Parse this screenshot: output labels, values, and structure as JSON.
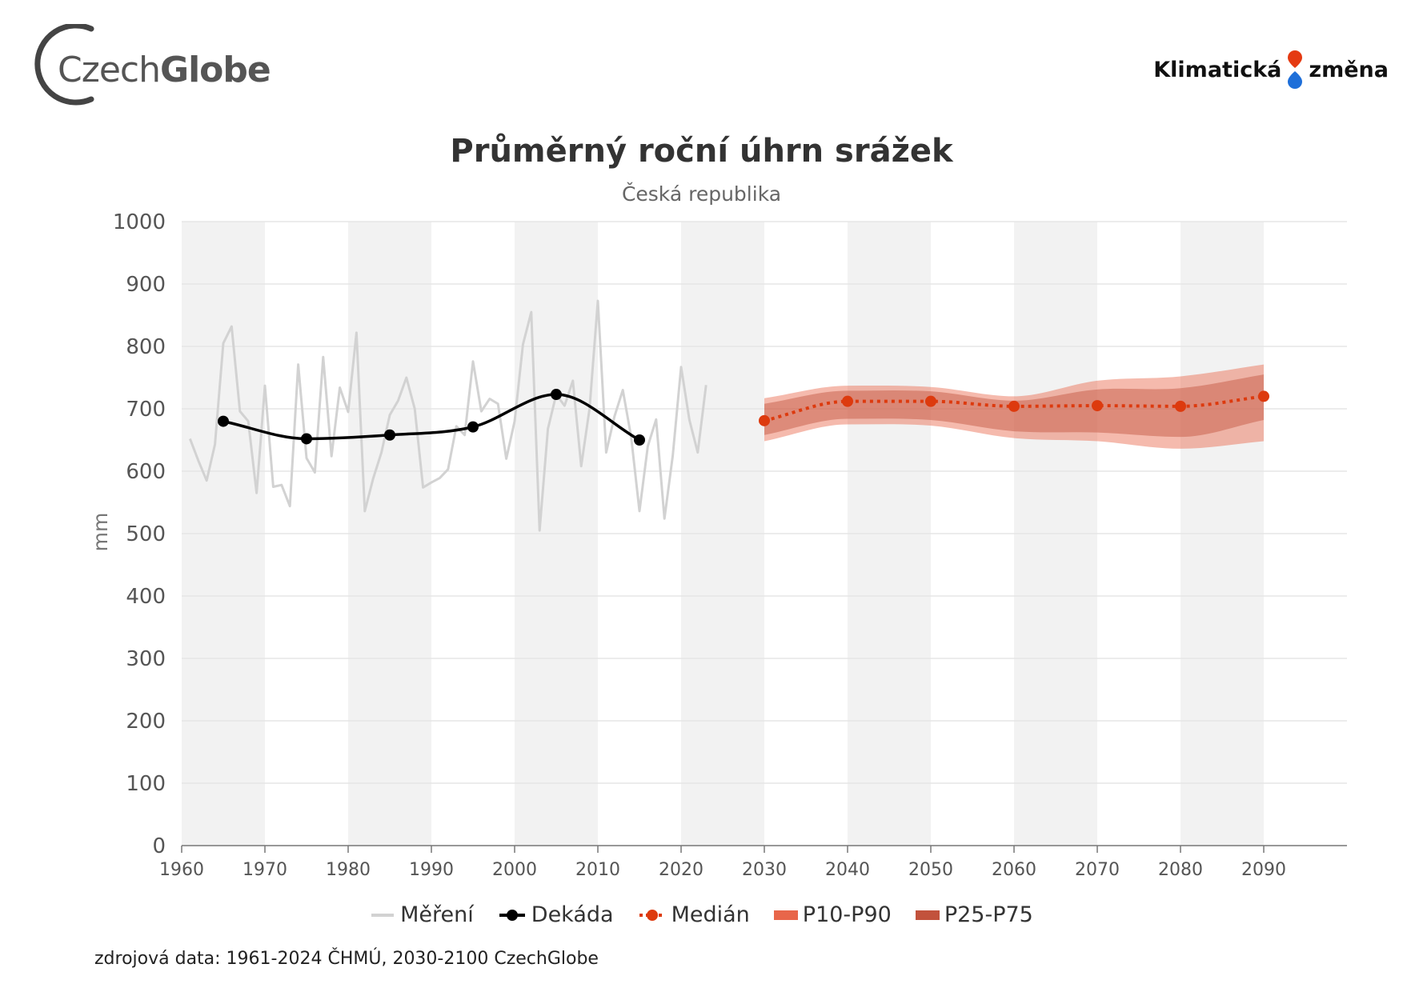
{
  "logos": {
    "left_part1": "Czech",
    "left_part2": "Globe",
    "right_word1": "Klimatická",
    "right_word2": "změna"
  },
  "colors": {
    "measured": "#d2d2d2",
    "decade": "#000000",
    "median": "#dd3a0e",
    "p10_p90": "#e8664a",
    "p25_p75": "#c2523c",
    "band_stripe": "#f2f2f2",
    "logo_red": "#e53a12",
    "logo_blue": "#1e6fd9"
  },
  "chart_data": {
    "type": "line",
    "title": "Průměrný roční úhrn srážek",
    "subtitle": "Česká republika",
    "ylabel": "mm",
    "xlabel": "",
    "xlim": [
      1960,
      2100
    ],
    "ylim": [
      0,
      1000
    ],
    "x_ticks": [
      1960,
      1970,
      1980,
      1990,
      2000,
      2010,
      2020,
      2030,
      2040,
      2050,
      2060,
      2070,
      2080,
      2090
    ],
    "y_ticks": [
      0,
      100,
      200,
      300,
      400,
      500,
      600,
      700,
      800,
      900,
      1000
    ],
    "legend_position": "bottom",
    "series": [
      {
        "name": "Měření",
        "kind": "line",
        "x": [
          1961,
          1962,
          1963,
          1964,
          1965,
          1966,
          1967,
          1968,
          1969,
          1970,
          1971,
          1972,
          1973,
          1974,
          1975,
          1976,
          1977,
          1978,
          1979,
          1980,
          1981,
          1982,
          1983,
          1984,
          1985,
          1986,
          1987,
          1988,
          1989,
          1990,
          1991,
          1992,
          1993,
          1994,
          1995,
          1996,
          1997,
          1998,
          1999,
          2000,
          2001,
          2002,
          2003,
          2004,
          2005,
          2006,
          2007,
          2008,
          2009,
          2010,
          2011,
          2012,
          2013,
          2014,
          2015,
          2016,
          2017,
          2018,
          2019,
          2020,
          2021,
          2022,
          2023
        ],
        "values": [
          652,
          617,
          585,
          643,
          805,
          832,
          696,
          680,
          565,
          737,
          575,
          578,
          544,
          771,
          621,
          598,
          783,
          624,
          734,
          695,
          822,
          536,
          588,
          630,
          690,
          713,
          750,
          700,
          574,
          582,
          589,
          603,
          672,
          658,
          776,
          696,
          716,
          708,
          620,
          680,
          803,
          855,
          505,
          668,
          723,
          705,
          745,
          608,
          700,
          873,
          630,
          688,
          730,
          655,
          536,
          640,
          683,
          524,
          625,
          767,
          682,
          630,
          738
        ]
      },
      {
        "name": "Dekáda",
        "kind": "line-markers",
        "x": [
          1965,
          1975,
          1985,
          1995,
          2005,
          2015
        ],
        "values": [
          680,
          652,
          658,
          671,
          723,
          650
        ]
      },
      {
        "name": "Medián",
        "kind": "dotted-markers",
        "x": [
          2030,
          2040,
          2050,
          2060,
          2070,
          2080,
          2090
        ],
        "values": [
          681,
          712,
          712,
          704,
          705,
          704,
          720
        ]
      },
      {
        "name": "P10-P90",
        "kind": "band",
        "x": [
          2030,
          2040,
          2050,
          2060,
          2070,
          2080,
          2090
        ],
        "low": [
          648,
          675,
          673,
          653,
          648,
          636,
          648
        ],
        "high": [
          717,
          737,
          735,
          720,
          745,
          752,
          771
        ]
      },
      {
        "name": "P25-P75",
        "kind": "band",
        "x": [
          2030,
          2040,
          2050,
          2060,
          2070,
          2080,
          2090
        ],
        "low": [
          658,
          684,
          682,
          664,
          662,
          655,
          682
        ],
        "high": [
          708,
          729,
          728,
          713,
          731,
          733,
          755
        ]
      }
    ],
    "source": "zdrojová data: 1961-2024 ČHMÚ, 2030-2100 CzechGlobe"
  }
}
